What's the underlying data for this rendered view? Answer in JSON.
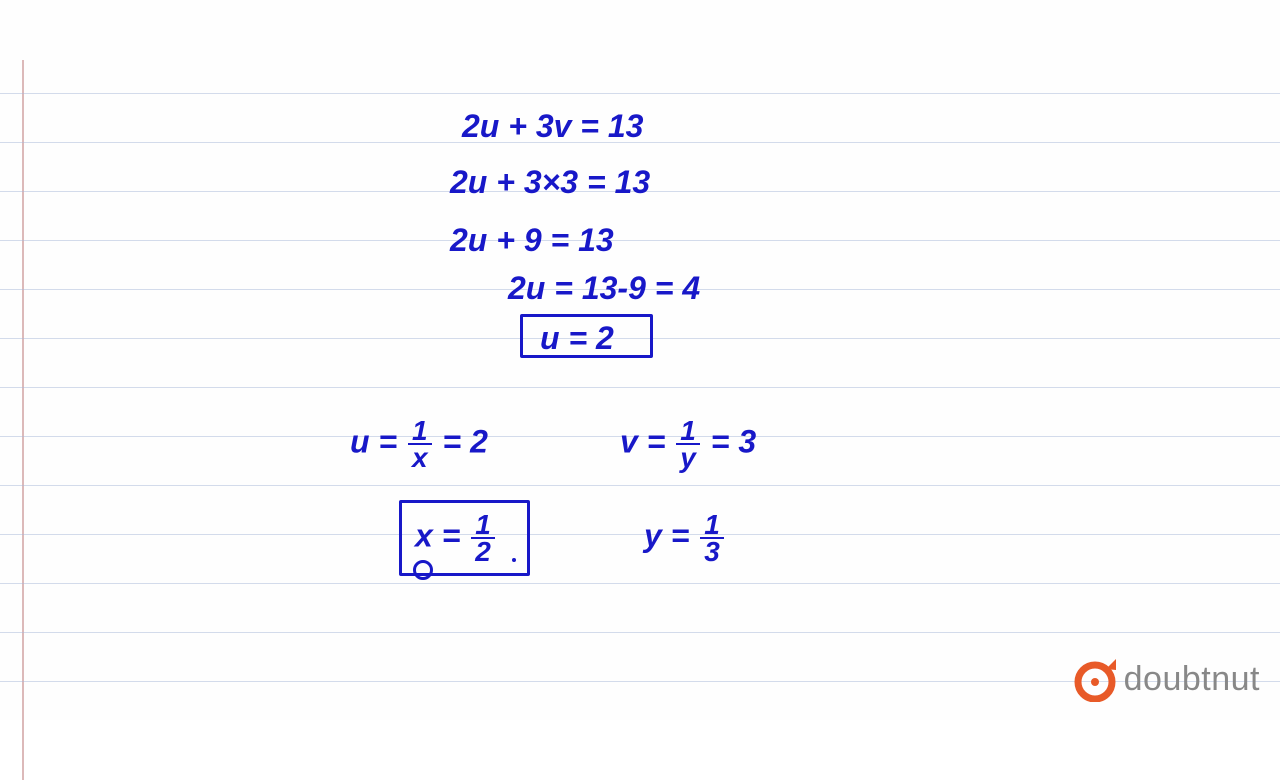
{
  "paper": {
    "ruled_line_color": "#a8b8d8",
    "ruled_line_spacing": 49,
    "ruled_line_start": 93,
    "ruled_line_count": 13,
    "margin_line_color": "#c08080",
    "margin_line_left": 22,
    "background": "#fefefe"
  },
  "ink_color": "#1818c8",
  "equations": {
    "line1": "2u + 3v = 13",
    "line2": "2u + 3×3 = 13",
    "line3": "2u + 9 = 13",
    "line4": "2u = 13-9 = 4",
    "line5": "u = 2",
    "line6_left_prefix": "u = ",
    "line6_left_frac_num": "1",
    "line6_left_frac_den": "x",
    "line6_left_suffix": " = 2",
    "line6_right_prefix": "v = ",
    "line6_right_frac_num": "1",
    "line6_right_frac_den": "y",
    "line6_right_suffix": " = 3",
    "line7_left_prefix": "x = ",
    "line7_left_frac_num": "1",
    "line7_left_frac_den": "2",
    "line7_right_prefix": "y = ",
    "line7_right_frac_num": "1",
    "line7_right_frac_den": "3"
  },
  "logo": {
    "text": "doubtnut",
    "icon_color": "#e85a28",
    "text_color": "#888888"
  }
}
